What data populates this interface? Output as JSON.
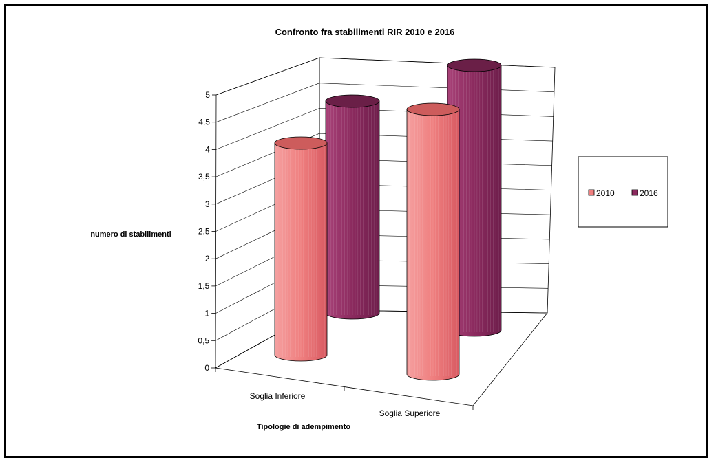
{
  "chart_data": {
    "type": "bar",
    "style": "3d-cylinder",
    "title": "Confronto fra stabilimenti RIR 2010 e 2016",
    "xlabel": "Tipologie di adempimento",
    "ylabel": "numero di stabilimenti",
    "categories": [
      "Soglia Inferiore",
      "Soglia Superiore"
    ],
    "series": [
      {
        "name": "2010",
        "values": [
          4,
          5
        ],
        "color": "#ef7f7f"
      },
      {
        "name": "2016",
        "values": [
          4,
          5
        ],
        "color": "#8b2a5e"
      }
    ],
    "ylim": [
      0,
      5
    ],
    "yticks": [
      "0",
      "0,5",
      "1",
      "1,5",
      "2",
      "2,5",
      "3",
      "3,5",
      "4",
      "4,5",
      "5"
    ],
    "grid": true,
    "legend_position": "right"
  }
}
